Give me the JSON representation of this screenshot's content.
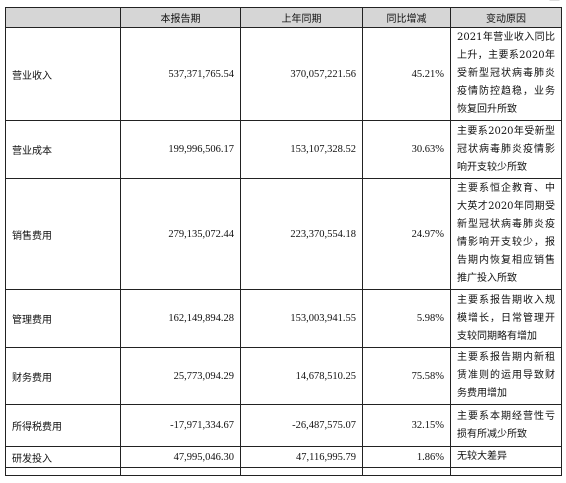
{
  "table": {
    "headers": [
      "",
      "本报告期",
      "上年同期",
      "同比增减",
      "变动原因"
    ],
    "rows": [
      {
        "label": "营业收入",
        "current": "537,371,765.54",
        "prior": "370,057,221.56",
        "change": "45.21%",
        "reason": "2021年营业收入同比上升，主要系2020年受新型冠状病毒肺炎疫情防控趋稳，业务恢复回升所致"
      },
      {
        "label": "营业成本",
        "current": "199,996,506.17",
        "prior": "153,107,328.52",
        "change": "30.63%",
        "reason": "主要系2020年受新型冠状病毒肺炎疫情影响开支较少所致"
      },
      {
        "label": "销售费用",
        "current": "279,135,072.44",
        "prior": "223,370,554.18",
        "change": "24.97%",
        "reason": "主要系恒企教育、中大英才2020年同期受新型冠状病毒肺炎疫情影响开支较少，报告期内恢复相应销售推广投入所致"
      },
      {
        "label": "管理费用",
        "current": "162,149,894.28",
        "prior": "153,003,941.55",
        "change": "5.98%",
        "reason": "主要系报告期收入规模增长，日常管理开支较同期略有增加"
      },
      {
        "label": "财务费用",
        "current": "25,773,094.29",
        "prior": "14,678,510.25",
        "change": "75.58%",
        "reason": "主要系报告期内新租赁准则的运用导致财务费用增加"
      },
      {
        "label": "所得税费用",
        "current": "-17,971,334.67",
        "prior": "-26,487,575.07",
        "change": "32.15%",
        "reason": "主要系本期经营性亏损有所减少所致"
      },
      {
        "label": "研发投入",
        "current": "47,995,046.30",
        "prior": "47,116,995.79",
        "change": "1.86%",
        "reason": "无较大差异"
      }
    ]
  }
}
